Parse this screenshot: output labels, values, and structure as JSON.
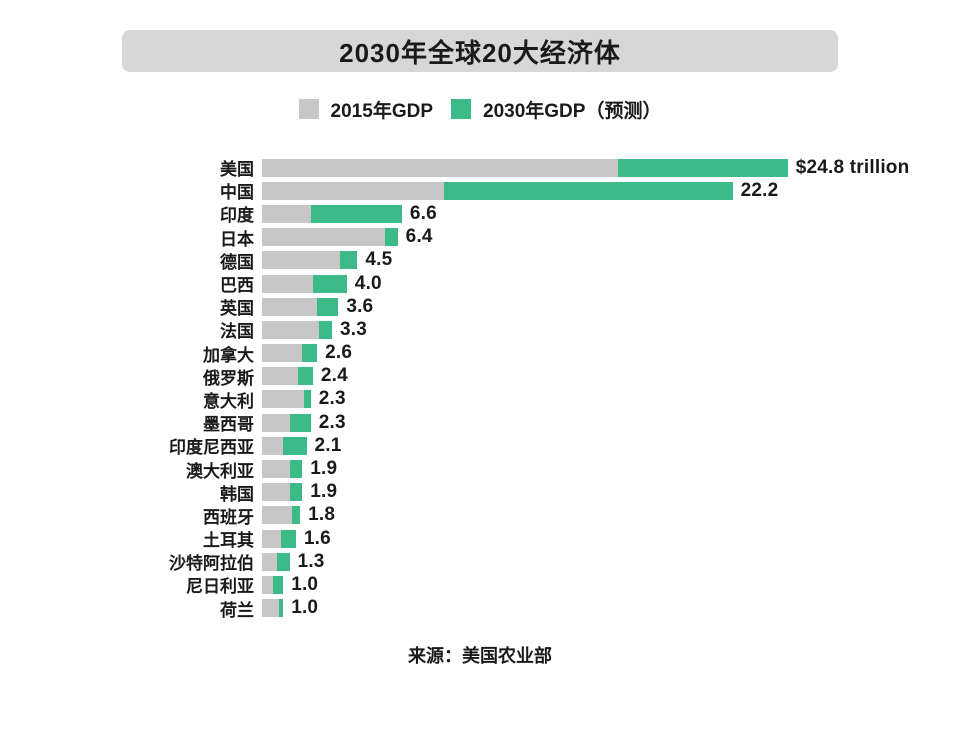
{
  "title": "2030年全球20大经济体",
  "legend": [
    {
      "label": "2015年GDP",
      "color": "#c7c7c7"
    },
    {
      "label": "2030年GDP（预测）",
      "color": "#3cba88"
    }
  ],
  "source": "来源：美国农业部",
  "colors": {
    "bar_2015_gray": "#c7c7c7",
    "bar_2030_green": "#3cba88",
    "title_band": "#d7d7d7",
    "text": "#1a1a1a",
    "background": "#ffffff"
  },
  "chart_data": {
    "type": "bar",
    "orientation": "horizontal",
    "stacked": true,
    "unit": "trillion USD",
    "title": "2030年全球20大经济体",
    "legend_position": "top",
    "xlim": [
      0,
      24.8
    ],
    "grid": false,
    "categories": [
      "美国",
      "中国",
      "印度",
      "日本",
      "德国",
      "巴西",
      "英国",
      "法国",
      "加拿大",
      "俄罗斯",
      "意大利",
      "墨西哥",
      "印度尼西亚",
      "澳大利亚",
      "韩国",
      "西班牙",
      "土耳其",
      "沙特阿拉伯",
      "尼日利亚",
      "荷兰"
    ],
    "series": [
      {
        "name": "2015年GDP",
        "color": "#c7c7c7",
        "values": [
          16.8,
          8.6,
          2.3,
          5.8,
          3.7,
          2.4,
          2.6,
          2.7,
          1.9,
          1.7,
          2.0,
          1.3,
          1.0,
          1.3,
          1.3,
          1.4,
          0.9,
          0.7,
          0.5,
          0.8
        ]
      },
      {
        "name": "2030年GDP（预测）",
        "color": "#3cba88",
        "values": [
          24.8,
          22.2,
          6.6,
          6.4,
          4.5,
          4.0,
          3.6,
          3.3,
          2.6,
          2.4,
          2.3,
          2.3,
          2.1,
          1.9,
          1.9,
          1.8,
          1.6,
          1.3,
          1.0,
          1.0
        ]
      }
    ],
    "value_labels": [
      "$24.8 trillion",
      "22.2",
      "6.6",
      "6.4",
      "4.5",
      "4.0",
      "3.6",
      "3.3",
      "2.6",
      "2.4",
      "2.3",
      "2.3",
      "2.1",
      "1.9",
      "1.9",
      "1.8",
      "1.6",
      "1.3",
      "1.0",
      "1.0"
    ]
  }
}
